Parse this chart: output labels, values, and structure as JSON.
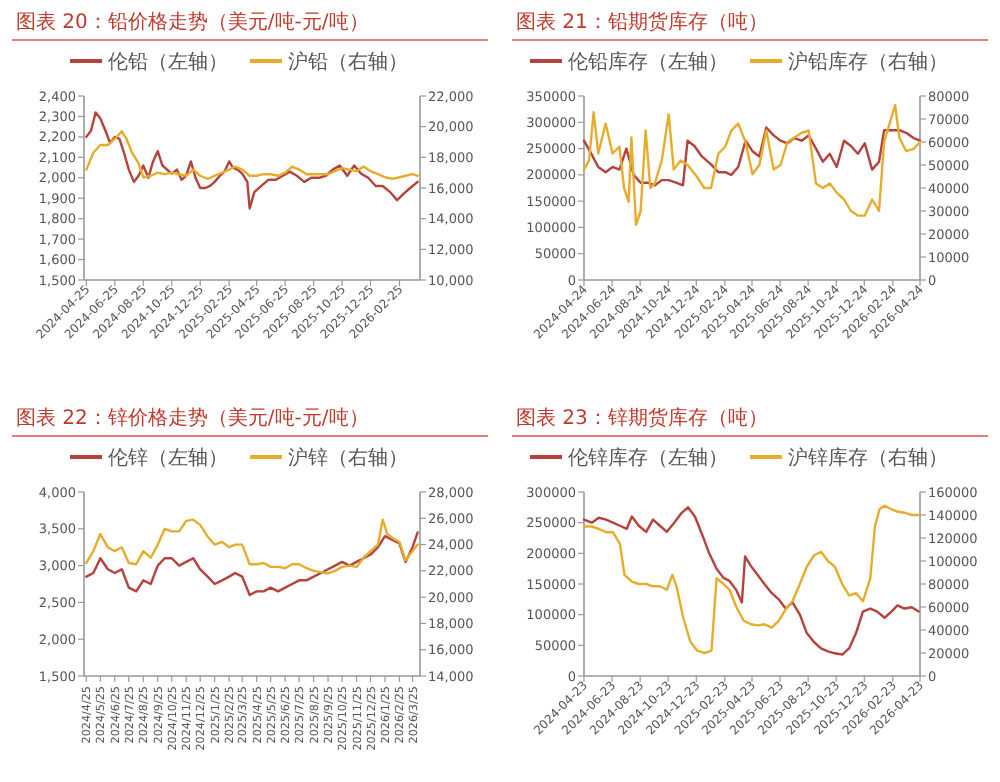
{
  "chart_data": [
    {
      "type": "line",
      "title": "图表 20：铅价格走势（美元/吨-元/吨）",
      "legend": "top",
      "grid": false,
      "xlim": [
        "2024-04-20",
        "2026-04-10"
      ],
      "xticks": [
        {
          "value": "2024-04-25",
          "label": "2024-04-25"
        },
        {
          "value": "2024-06-25",
          "label": "2024-06-25"
        },
        {
          "value": "2024-08-25",
          "label": "2024-08-25"
        },
        {
          "value": "2024-10-25",
          "label": "2024-10-25"
        },
        {
          "value": "2024-12-25",
          "label": "2024-12-25"
        },
        {
          "value": "2025-02-25",
          "label": "2025-02-25"
        },
        {
          "value": "2025-04-25",
          "label": "2025-04-25"
        },
        {
          "value": "2025-06-25",
          "label": "2025-06-25"
        },
        {
          "value": "2025-08-25",
          "label": "2025-08-25"
        },
        {
          "value": "2025-10-25",
          "label": "2025-10-25"
        },
        {
          "value": "2025-12-25",
          "label": "2025-12-25"
        },
        {
          "value": "2026-02-25",
          "label": "2026-02-25"
        }
      ],
      "ylim": [
        1500,
        2400
      ],
      "yticks": [
        {
          "value": 1500,
          "label": "1,500"
        },
        {
          "value": 1600,
          "label": "1,600"
        },
        {
          "value": 1700,
          "label": "1,700"
        },
        {
          "value": 1800,
          "label": "1,800"
        },
        {
          "value": 1900,
          "label": "1,900"
        },
        {
          "value": 2000,
          "label": "2,000"
        },
        {
          "value": 2100,
          "label": "2,100"
        },
        {
          "value": 2200,
          "label": "2,200"
        },
        {
          "value": 2300,
          "label": "2,300"
        },
        {
          "value": 2400,
          "label": "2,400"
        }
      ],
      "y2lim": [
        10000,
        22000
      ],
      "y2ticks": [
        {
          "value": 10000,
          "label": "10,000"
        },
        {
          "value": 12000,
          "label": "12,000"
        },
        {
          "value": 14000,
          "label": "14,000"
        },
        {
          "value": 16000,
          "label": "16,000"
        },
        {
          "value": 18000,
          "label": "18,000"
        },
        {
          "value": 20000,
          "label": "20,000"
        },
        {
          "value": 22000,
          "label": "22,000"
        }
      ],
      "series": [
        {
          "name": "伦铅（左轴）",
          "color": "#b5423c",
          "x": [
            "2024-04-25",
            "2024-05-05",
            "2024-05-15",
            "2024-05-25",
            "2024-06-05",
            "2024-06-15",
            "2024-06-25",
            "2024-07-05",
            "2024-07-15",
            "2024-07-25",
            "2024-08-05",
            "2024-08-15",
            "2024-08-25",
            "2024-09-05",
            "2024-09-15",
            "2024-09-25",
            "2024-10-05",
            "2024-10-15",
            "2024-10-25",
            "2024-11-05",
            "2024-11-15",
            "2024-11-25",
            "2024-12-05",
            "2024-12-15",
            "2024-12-25",
            "2025-01-05",
            "2025-01-15",
            "2025-01-25",
            "2025-02-05",
            "2025-02-15",
            "2025-02-25",
            "2025-03-05",
            "2025-03-15",
            "2025-03-25",
            "2025-04-05",
            "2025-04-10",
            "2025-04-20",
            "2025-05-05",
            "2025-05-20",
            "2025-06-05",
            "2025-06-20",
            "2025-07-05",
            "2025-07-20",
            "2025-08-05",
            "2025-08-20",
            "2025-09-05",
            "2025-09-20",
            "2025-10-05",
            "2025-10-20",
            "2025-11-05",
            "2025-11-20",
            "2025-12-05",
            "2025-12-20",
            "2026-01-05",
            "2026-01-20",
            "2026-02-05",
            "2026-02-20",
            "2026-03-05",
            "2026-03-20",
            "2026-04-05"
          ],
          "values": [
            2200,
            2230,
            2320,
            2290,
            2230,
            2170,
            2200,
            2190,
            2120,
            2040,
            1980,
            2010,
            2060,
            2000,
            2080,
            2130,
            2060,
            2040,
            2020,
            2040,
            1990,
            2010,
            2080,
            2000,
            1950,
            1950,
            1960,
            1980,
            2010,
            2030,
            2080,
            2050,
            2040,
            2020,
            1980,
            1850,
            1930,
            1960,
            1990,
            1990,
            2010,
            2030,
            2010,
            1980,
            2000,
            2000,
            2010,
            2040,
            2060,
            2010,
            2060,
            2020,
            2000,
            1960,
            1960,
            1930,
            1890,
            1920,
            1950,
            1980
          ]
        },
        {
          "name": "沪铅（右轴）",
          "color": "#e8ac2c",
          "axis": "y2",
          "x": [
            "2024-04-25",
            "2024-05-10",
            "2024-05-25",
            "2024-06-10",
            "2024-06-25",
            "2024-07-10",
            "2024-07-20",
            "2024-08-01",
            "2024-08-15",
            "2024-08-25",
            "2024-09-10",
            "2024-09-25",
            "2024-10-10",
            "2024-10-25",
            "2024-11-10",
            "2024-11-25",
            "2024-12-10",
            "2024-12-25",
            "2025-01-10",
            "2025-01-25",
            "2025-02-10",
            "2025-02-25",
            "2025-03-10",
            "2025-03-25",
            "2025-04-10",
            "2025-04-25",
            "2025-05-10",
            "2025-05-25",
            "2025-06-10",
            "2025-06-25",
            "2025-07-10",
            "2025-07-25",
            "2025-08-10",
            "2025-08-25",
            "2025-09-10",
            "2025-09-25",
            "2025-10-10",
            "2025-10-25",
            "2025-11-10",
            "2025-11-25",
            "2025-12-10",
            "2025-12-25",
            "2026-01-10",
            "2026-01-25",
            "2026-02-10",
            "2026-02-25",
            "2026-03-10",
            "2026-03-25",
            "2026-04-05"
          ],
          "values": [
            17200,
            18300,
            18800,
            18800,
            19200,
            19700,
            19200,
            18300,
            17600,
            16700,
            16800,
            17000,
            16900,
            17000,
            16900,
            16800,
            17200,
            16800,
            16600,
            16800,
            17000,
            17200,
            17400,
            17200,
            16800,
            16800,
            16900,
            16900,
            16800,
            17000,
            17400,
            17200,
            16900,
            16900,
            16900,
            16900,
            17100,
            17300,
            17200,
            17100,
            17400,
            17100,
            16900,
            16700,
            16600,
            16700,
            16800,
            16900,
            16800
          ]
        }
      ]
    },
    {
      "type": "line",
      "title": "图表 21：铅期货库存（吨）",
      "legend": "top",
      "grid": false,
      "xlim": [
        "2024-04-24",
        "2026-04-24"
      ],
      "xticks": [
        {
          "value": "2024-04-24",
          "label": "2024-04-24"
        },
        {
          "value": "2024-06-24",
          "label": "2024-06-24"
        },
        {
          "value": "2024-08-24",
          "label": "2024-08-24"
        },
        {
          "value": "2024-10-24",
          "label": "2024-10-24"
        },
        {
          "value": "2024-12-24",
          "label": "2024-12-24"
        },
        {
          "value": "2025-02-24",
          "label": "2025-02-24"
        },
        {
          "value": "2025-04-24",
          "label": "2025-04-24"
        },
        {
          "value": "2025-06-24",
          "label": "2025-06-24"
        },
        {
          "value": "2025-08-24",
          "label": "2025-08-24"
        },
        {
          "value": "2025-10-24",
          "label": "2025-10-24"
        },
        {
          "value": "2025-12-24",
          "label": "2025-12-24"
        },
        {
          "value": "2026-02-24",
          "label": "2026-02-24"
        },
        {
          "value": "2026-04-24",
          "label": "2026-04-24"
        }
      ],
      "ylim": [
        0,
        350000
      ],
      "yticks": [
        0,
        50000,
        100000,
        150000,
        200000,
        250000,
        300000,
        350000
      ],
      "y2lim": [
        0,
        80000
      ],
      "y2ticks": [
        0,
        10000,
        20000,
        30000,
        40000,
        50000,
        60000,
        70000,
        80000
      ],
      "series": [
        {
          "name": "伦铅库存（左轴）",
          "color": "#b5423c",
          "x": [
            "2024-04-24",
            "2024-05-10",
            "2024-05-25",
            "2024-06-10",
            "2024-06-25",
            "2024-07-10",
            "2024-07-25",
            "2024-08-10",
            "2024-08-25",
            "2024-09-10",
            "2024-09-25",
            "2024-10-10",
            "2024-10-25",
            "2024-11-10",
            "2024-11-25",
            "2024-12-05",
            "2024-12-20",
            "2025-01-05",
            "2025-01-25",
            "2025-02-10",
            "2025-02-25",
            "2025-03-10",
            "2025-03-25",
            "2025-04-10",
            "2025-04-25",
            "2025-05-10",
            "2025-05-25",
            "2025-06-10",
            "2025-06-25",
            "2025-07-10",
            "2025-07-25",
            "2025-08-10",
            "2025-08-25",
            "2025-09-10",
            "2025-09-25",
            "2025-10-10",
            "2025-10-25",
            "2025-11-10",
            "2025-11-25",
            "2025-12-10",
            "2025-12-25",
            "2026-01-10",
            "2026-01-25",
            "2026-02-05",
            "2026-02-20",
            "2026-03-10",
            "2026-03-25",
            "2026-04-10",
            "2026-04-24"
          ],
          "values": [
            265000,
            240000,
            215000,
            205000,
            215000,
            210000,
            250000,
            200000,
            185000,
            185000,
            180000,
            190000,
            190000,
            185000,
            180000,
            265000,
            255000,
            235000,
            220000,
            205000,
            205000,
            200000,
            215000,
            265000,
            245000,
            235000,
            290000,
            275000,
            265000,
            260000,
            270000,
            265000,
            275000,
            250000,
            225000,
            240000,
            215000,
            265000,
            255000,
            240000,
            260000,
            210000,
            225000,
            285000,
            285000,
            285000,
            280000,
            270000,
            265000
          ]
        },
        {
          "name": "沪铅库存（右轴）",
          "color": "#e8ac2c",
          "axis": "y2",
          "x": [
            "2024-04-24",
            "2024-05-05",
            "2024-05-15",
            "2024-05-25",
            "2024-06-10",
            "2024-06-25",
            "2024-07-10",
            "2024-07-20",
            "2024-07-30",
            "2024-08-05",
            "2024-08-15",
            "2024-08-25",
            "2024-09-05",
            "2024-09-15",
            "2024-09-25",
            "2024-10-10",
            "2024-10-25",
            "2024-11-05",
            "2024-11-20",
            "2024-12-05",
            "2024-12-25",
            "2025-01-10",
            "2025-01-25",
            "2025-02-10",
            "2025-02-25",
            "2025-03-10",
            "2025-03-25",
            "2025-04-10",
            "2025-04-25",
            "2025-05-10",
            "2025-05-25",
            "2025-06-10",
            "2025-06-25",
            "2025-07-10",
            "2025-07-25",
            "2025-08-10",
            "2025-08-25",
            "2025-09-10",
            "2025-09-25",
            "2025-10-10",
            "2025-10-25",
            "2025-11-10",
            "2025-11-25",
            "2025-12-10",
            "2025-12-25",
            "2026-01-10",
            "2026-01-25",
            "2026-02-05",
            "2026-02-20",
            "2026-03-01",
            "2026-03-10",
            "2026-03-25",
            "2026-04-10",
            "2026-04-24"
          ],
          "values": [
            48000,
            52000,
            73000,
            55000,
            68000,
            55000,
            58000,
            40000,
            34000,
            62000,
            24000,
            30000,
            65000,
            40000,
            42000,
            52000,
            72000,
            48000,
            52000,
            50000,
            45000,
            40000,
            40000,
            55000,
            58000,
            65000,
            68000,
            60000,
            46000,
            50000,
            65000,
            48000,
            50000,
            60000,
            62000,
            64000,
            65000,
            42000,
            40000,
            42000,
            38000,
            35000,
            30000,
            28000,
            28000,
            35000,
            30000,
            60000,
            70000,
            76000,
            62000,
            56000,
            57000,
            60000
          ]
        }
      ]
    },
    {
      "type": "line",
      "title": "图表 22：锌价格走势（美元/吨-元/吨）",
      "legend": "top",
      "grid": false,
      "xlim": [
        "2024-04-20",
        "2026-04-10"
      ],
      "xticks": [
        {
          "value": "2024-04-25",
          "label": "2024/4/25"
        },
        {
          "value": "2024-05-25",
          "label": "2024/5/25"
        },
        {
          "value": "2024-06-25",
          "label": "2024/6/25"
        },
        {
          "value": "2024-07-25",
          "label": "2024/7/25"
        },
        {
          "value": "2024-08-25",
          "label": "2024/8/25"
        },
        {
          "value": "2024-09-25",
          "label": "2024/9/25"
        },
        {
          "value": "2024-10-25",
          "label": "2024/10/25"
        },
        {
          "value": "2024-11-25",
          "label": "2024/11/25"
        },
        {
          "value": "2024-12-25",
          "label": "2024/12/25"
        },
        {
          "value": "2025-01-25",
          "label": "2025/1/25"
        },
        {
          "value": "2025-02-25",
          "label": "2025/2/25"
        },
        {
          "value": "2025-03-25",
          "label": "2025/3/25"
        },
        {
          "value": "2025-04-25",
          "label": "2025/4/25"
        },
        {
          "value": "2025-05-25",
          "label": "2025/5/25"
        },
        {
          "value": "2025-06-25",
          "label": "2025/6/25"
        },
        {
          "value": "2025-07-25",
          "label": "2025/7/25"
        },
        {
          "value": "2025-08-25",
          "label": "2025/8/25"
        },
        {
          "value": "2025-09-25",
          "label": "2025/9/25"
        },
        {
          "value": "2025-10-25",
          "label": "2025/10/25"
        },
        {
          "value": "2025-11-25",
          "label": "2025/11/25"
        },
        {
          "value": "2025-12-25",
          "label": "2025/12/25"
        },
        {
          "value": "2026-01-25",
          "label": "2026/1/25"
        },
        {
          "value": "2026-02-25",
          "label": "2026/2/25"
        },
        {
          "value": "2026-03-25",
          "label": "2026/3/25"
        }
      ],
      "ylim": [
        1500,
        4000
      ],
      "yticks": [
        {
          "value": 1500,
          "label": "1,500"
        },
        {
          "value": 2000,
          "label": "2,000"
        },
        {
          "value": 2500,
          "label": "2,500"
        },
        {
          "value": 3000,
          "label": "3,000"
        },
        {
          "value": 3500,
          "label": "3,500"
        },
        {
          "value": 4000,
          "label": "4,000"
        }
      ],
      "y2lim": [
        14000,
        28000
      ],
      "y2ticks": [
        {
          "value": 14000,
          "label": "14,000"
        },
        {
          "value": 16000,
          "label": "16,000"
        },
        {
          "value": 18000,
          "label": "18,000"
        },
        {
          "value": 20000,
          "label": "20,000"
        },
        {
          "value": 22000,
          "label": "22,000"
        },
        {
          "value": 24000,
          "label": "24,000"
        },
        {
          "value": 26000,
          "label": "26,000"
        },
        {
          "value": 28000,
          "label": "28,000"
        }
      ],
      "series": [
        {
          "name": "伦锌（左轴）",
          "color": "#b5423c",
          "x": [
            "2024-04-25",
            "2024-05-10",
            "2024-05-25",
            "2024-06-10",
            "2024-06-25",
            "2024-07-10",
            "2024-07-25",
            "2024-08-10",
            "2024-08-25",
            "2024-09-10",
            "2024-09-25",
            "2024-10-10",
            "2024-10-25",
            "2024-11-10",
            "2024-11-25",
            "2024-12-10",
            "2024-12-25",
            "2025-01-10",
            "2025-01-25",
            "2025-02-10",
            "2025-02-25",
            "2025-03-10",
            "2025-03-25",
            "2025-04-10",
            "2025-04-25",
            "2025-05-10",
            "2025-05-25",
            "2025-06-10",
            "2025-06-25",
            "2025-07-10",
            "2025-07-25",
            "2025-08-10",
            "2025-08-25",
            "2025-09-10",
            "2025-09-25",
            "2025-10-10",
            "2025-10-25",
            "2025-11-10",
            "2025-11-25",
            "2025-12-10",
            "2025-12-25",
            "2026-01-10",
            "2026-01-25",
            "2026-02-10",
            "2026-02-25",
            "2026-03-10",
            "2026-03-25",
            "2026-04-05"
          ],
          "values": [
            2850,
            2900,
            3100,
            2950,
            2900,
            2950,
            2700,
            2650,
            2800,
            2750,
            3000,
            3100,
            3100,
            3000,
            3050,
            3100,
            2950,
            2850,
            2750,
            2800,
            2850,
            2900,
            2850,
            2600,
            2650,
            2650,
            2700,
            2650,
            2700,
            2750,
            2800,
            2800,
            2850,
            2900,
            2950,
            3000,
            3050,
            3000,
            3050,
            3100,
            3150,
            3250,
            3400,
            3350,
            3300,
            3050,
            3250,
            3450
          ]
        },
        {
          "name": "沪锌（右轴）",
          "color": "#e8ac2c",
          "axis": "y2",
          "x": [
            "2024-04-25",
            "2024-05-10",
            "2024-05-25",
            "2024-06-10",
            "2024-06-25",
            "2024-07-10",
            "2024-07-25",
            "2024-08-10",
            "2024-08-25",
            "2024-09-10",
            "2024-09-25",
            "2024-10-10",
            "2024-10-25",
            "2024-11-10",
            "2024-11-25",
            "2024-12-10",
            "2024-12-25",
            "2025-01-10",
            "2025-01-25",
            "2025-02-10",
            "2025-02-25",
            "2025-03-10",
            "2025-03-25",
            "2025-04-10",
            "2025-04-25",
            "2025-05-10",
            "2025-05-25",
            "2025-06-10",
            "2025-06-25",
            "2025-07-10",
            "2025-07-25",
            "2025-08-10",
            "2025-08-25",
            "2025-09-10",
            "2025-09-25",
            "2025-10-10",
            "2025-10-25",
            "2025-11-10",
            "2025-11-25",
            "2025-12-10",
            "2025-12-25",
            "2026-01-10",
            "2026-01-20",
            "2026-01-30",
            "2026-02-10",
            "2026-02-25",
            "2026-03-10",
            "2026-03-25",
            "2026-04-05"
          ],
          "values": [
            22600,
            23500,
            24800,
            23800,
            23500,
            23800,
            22600,
            22500,
            23500,
            23000,
            24000,
            25200,
            25000,
            25000,
            25800,
            25900,
            25500,
            24600,
            24000,
            24200,
            23800,
            24000,
            24000,
            22500,
            22500,
            22600,
            22300,
            22300,
            22200,
            22500,
            22500,
            22200,
            22000,
            21900,
            21800,
            22000,
            22300,
            22400,
            22300,
            23000,
            23500,
            24000,
            25900,
            24800,
            24500,
            24200,
            22800,
            23500,
            24000
          ]
        }
      ]
    },
    {
      "type": "line",
      "title": "图表 23：锌期货库存（吨）",
      "legend": "top",
      "grid": false,
      "xlim": [
        "2024-04-23",
        "2026-04-23"
      ],
      "xticks": [
        {
          "value": "2024-04-23",
          "label": "2024-04-23"
        },
        {
          "value": "2024-06-23",
          "label": "2024-06-23"
        },
        {
          "value": "2024-08-23",
          "label": "2024-08-23"
        },
        {
          "value": "2024-10-23",
          "label": "2024-10-23"
        },
        {
          "value": "2024-12-23",
          "label": "2024-12-23"
        },
        {
          "value": "2025-02-23",
          "label": "2025-02-23"
        },
        {
          "value": "2025-04-23",
          "label": "2025-04-23"
        },
        {
          "value": "2025-06-23",
          "label": "2025-06-23"
        },
        {
          "value": "2025-08-23",
          "label": "2025-08-23"
        },
        {
          "value": "2025-10-23",
          "label": "2025-10-23"
        },
        {
          "value": "2025-12-23",
          "label": "2025-12-23"
        },
        {
          "value": "2026-02-23",
          "label": "2026-02-23"
        },
        {
          "value": "2026-04-23",
          "label": "2026-04-23"
        }
      ],
      "ylim": [
        0,
        300000
      ],
      "yticks": [
        0,
        50000,
        100000,
        150000,
        200000,
        250000,
        300000
      ],
      "y2lim": [
        0,
        160000
      ],
      "y2ticks": [
        0,
        20000,
        40000,
        60000,
        80000,
        100000,
        120000,
        140000,
        160000
      ],
      "series": [
        {
          "name": "伦锌库存（左轴）",
          "color": "#b5423c",
          "x": [
            "2024-04-23",
            "2024-05-10",
            "2024-05-25",
            "2024-06-10",
            "2024-06-25",
            "2024-07-10",
            "2024-07-25",
            "2024-08-05",
            "2024-08-20",
            "2024-09-05",
            "2024-09-20",
            "2024-10-05",
            "2024-10-20",
            "2024-11-05",
            "2024-11-20",
            "2024-12-05",
            "2024-12-20",
            "2025-01-05",
            "2025-01-20",
            "2025-02-05",
            "2025-02-20",
            "2025-03-05",
            "2025-03-20",
            "2025-04-01",
            "2025-04-08",
            "2025-04-20",
            "2025-05-05",
            "2025-05-20",
            "2025-06-05",
            "2025-06-20",
            "2025-07-05",
            "2025-07-20",
            "2025-08-05",
            "2025-08-20",
            "2025-09-05",
            "2025-09-20",
            "2025-10-05",
            "2025-10-20",
            "2025-11-05",
            "2025-11-20",
            "2025-12-05",
            "2025-12-20",
            "2026-01-05",
            "2026-01-20",
            "2026-02-05",
            "2026-02-20",
            "2026-03-05",
            "2026-03-20",
            "2026-04-05",
            "2026-04-20"
          ],
          "values": [
            255000,
            250000,
            258000,
            255000,
            250000,
            245000,
            240000,
            260000,
            245000,
            235000,
            255000,
            245000,
            235000,
            250000,
            265000,
            275000,
            260000,
            230000,
            200000,
            175000,
            160000,
            155000,
            140000,
            120000,
            195000,
            180000,
            165000,
            150000,
            135000,
            125000,
            110000,
            120000,
            100000,
            70000,
            55000,
            45000,
            40000,
            37000,
            35000,
            45000,
            70000,
            105000,
            110000,
            105000,
            95000,
            105000,
            115000,
            110000,
            112000,
            105000
          ]
        },
        {
          "name": "沪锌库存（右轴）",
          "color": "#e8ac2c",
          "axis": "y2",
          "x": [
            "2024-04-23",
            "2024-05-10",
            "2024-05-25",
            "2024-06-10",
            "2024-06-25",
            "2024-07-10",
            "2024-07-20",
            "2024-08-05",
            "2024-08-20",
            "2024-09-05",
            "2024-09-20",
            "2024-10-05",
            "2024-10-20",
            "2024-11-01",
            "2024-11-10",
            "2024-11-25",
            "2024-12-10",
            "2024-12-25",
            "2025-01-10",
            "2025-01-25",
            "2025-02-05",
            "2025-02-20",
            "2025-03-05",
            "2025-03-20",
            "2025-04-05",
            "2025-04-20",
            "2025-05-05",
            "2025-05-20",
            "2025-06-05",
            "2025-06-20",
            "2025-07-05",
            "2025-07-20",
            "2025-08-05",
            "2025-08-20",
            "2025-09-05",
            "2025-09-20",
            "2025-10-05",
            "2025-10-20",
            "2025-11-05",
            "2025-11-20",
            "2025-12-05",
            "2025-12-20",
            "2026-01-05",
            "2026-01-15",
            "2026-01-25",
            "2026-02-05",
            "2026-02-20",
            "2026-03-05",
            "2026-03-20",
            "2026-04-05",
            "2026-04-20"
          ],
          "values": [
            130000,
            130000,
            128000,
            125000,
            125000,
            115000,
            88000,
            82000,
            80000,
            80000,
            78000,
            78000,
            75000,
            88000,
            78000,
            50000,
            30000,
            22000,
            20000,
            22000,
            85000,
            80000,
            75000,
            60000,
            48000,
            45000,
            44000,
            45000,
            42000,
            48000,
            58000,
            65000,
            80000,
            95000,
            105000,
            108000,
            100000,
            95000,
            80000,
            70000,
            72000,
            65000,
            85000,
            130000,
            145000,
            148000,
            145000,
            143000,
            142000,
            140000,
            140000
          ]
        }
      ]
    }
  ]
}
